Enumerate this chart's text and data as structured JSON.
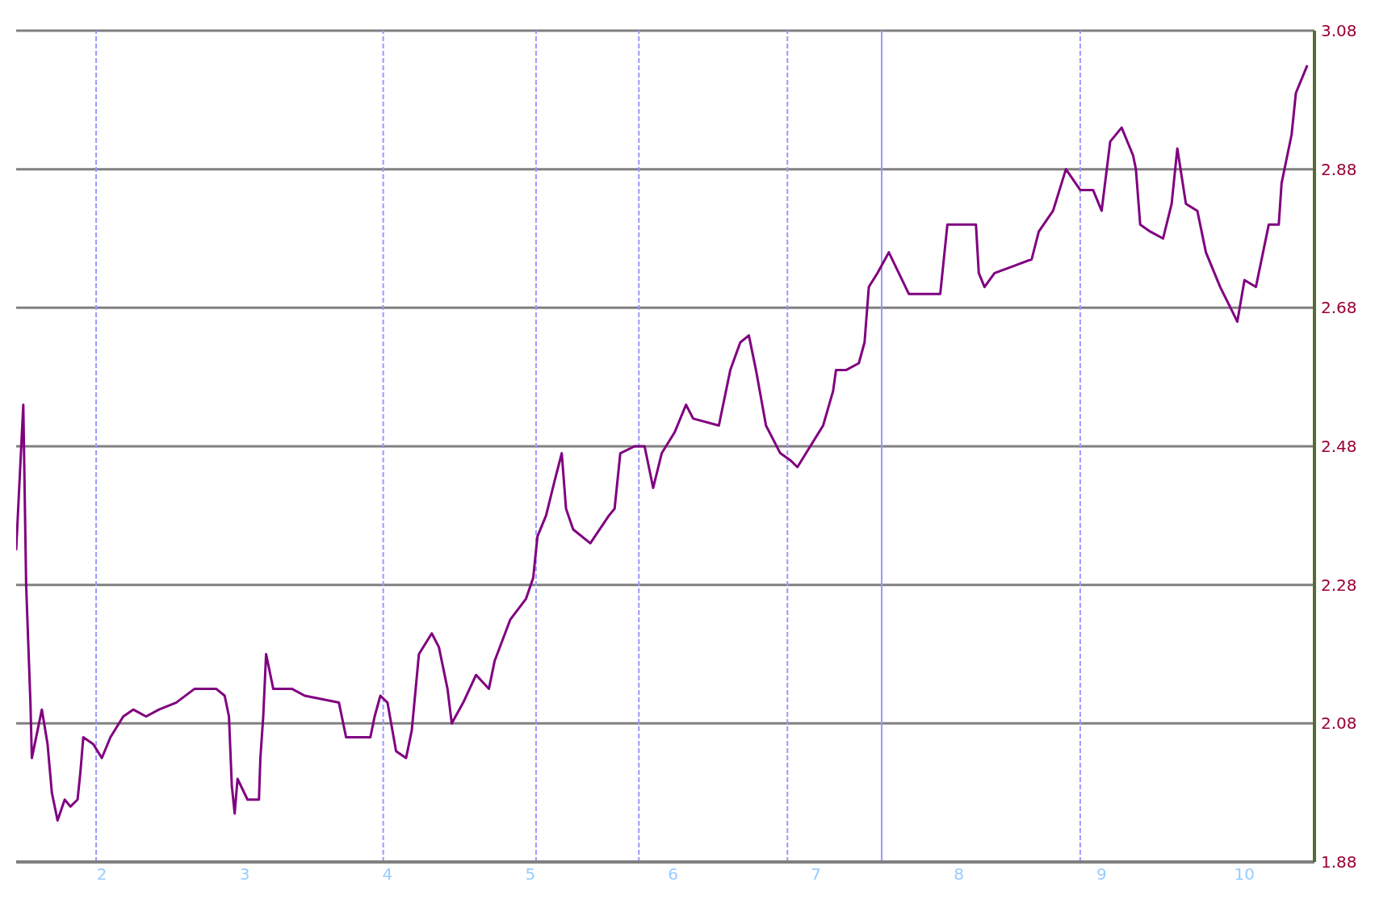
{
  "chart_data": {
    "type": "line",
    "x": [
      1.4,
      1.45,
      1.47,
      1.5,
      1.51,
      1.55,
      1.58,
      1.62,
      1.65,
      1.69,
      1.74,
      1.78,
      1.83,
      1.85,
      1.87,
      1.94,
      2.0,
      2.06,
      2.15,
      2.22,
      2.31,
      2.4,
      2.52,
      2.65,
      2.8,
      2.86,
      2.89,
      2.91,
      2.93,
      2.95,
      3.02,
      3.1,
      3.11,
      3.13,
      3.15,
      3.2,
      3.33,
      3.42,
      3.66,
      3.71,
      3.75,
      3.82,
      3.88,
      3.91,
      3.95,
      4.0,
      4.06,
      4.13,
      4.17,
      4.22,
      4.31,
      4.36,
      4.42,
      4.45,
      4.53,
      4.62,
      4.71,
      4.75,
      4.86,
      4.97,
      5.02,
      5.05,
      5.11,
      5.17,
      5.22,
      5.25,
      5.3,
      5.42,
      5.55,
      5.59,
      5.63,
      5.73,
      5.8,
      5.86,
      5.92,
      6.01,
      6.09,
      6.14,
      6.32,
      6.4,
      6.47,
      6.53,
      6.58,
      6.65,
      6.75,
      6.82,
      6.87,
      6.96,
      7.05,
      7.12,
      7.14,
      7.21,
      7.3,
      7.34,
      7.37,
      7.43,
      7.51,
      7.58,
      7.65,
      7.87,
      7.92,
      7.98,
      8.12,
      8.14,
      8.18,
      8.25,
      8.38,
      8.51,
      8.56,
      8.66,
      8.75,
      8.85,
      8.94,
      9.0,
      9.06,
      9.14,
      9.22,
      9.24,
      9.27,
      9.34,
      9.43,
      9.49,
      9.53,
      9.59,
      9.67,
      9.73,
      9.83,
      9.95,
      10.0,
      10.08,
      10.17,
      10.24,
      10.26,
      10.33,
      10.36,
      10.44
    ],
    "series": [
      {
        "color": "#800080",
        "values": [
          2.33,
          2.54,
          2.28,
          2.11,
          2.03,
          2.07,
          2.1,
          2.05,
          1.98,
          1.94,
          1.97,
          1.96,
          1.97,
          2.01,
          2.06,
          2.05,
          2.03,
          2.06,
          2.09,
          2.1,
          2.09,
          2.1,
          2.11,
          2.13,
          2.13,
          2.12,
          2.09,
          1.99,
          1.95,
          2.0,
          1.97,
          1.97,
          2.03,
          2.09,
          2.18,
          2.13,
          2.13,
          2.12,
          2.11,
          2.06,
          2.06,
          2.06,
          2.06,
          2.09,
          2.12,
          2.11,
          2.04,
          2.03,
          2.07,
          2.18,
          2.21,
          2.19,
          2.13,
          2.08,
          2.11,
          2.15,
          2.13,
          2.17,
          2.23,
          2.26,
          2.29,
          2.35,
          2.38,
          2.43,
          2.47,
          2.39,
          2.36,
          2.34,
          2.38,
          2.39,
          2.47,
          2.48,
          2.48,
          2.42,
          2.47,
          2.5,
          2.54,
          2.52,
          2.51,
          2.59,
          2.63,
          2.64,
          2.59,
          2.51,
          2.47,
          2.46,
          2.45,
          2.48,
          2.51,
          2.56,
          2.59,
          2.59,
          2.6,
          2.63,
          2.71,
          2.73,
          2.76,
          2.73,
          2.7,
          2.7,
          2.8,
          2.8,
          2.8,
          2.73,
          2.71,
          2.73,
          2.74,
          2.75,
          2.79,
          2.82,
          2.88,
          2.85,
          2.85,
          2.82,
          2.92,
          2.94,
          2.9,
          2.88,
          2.8,
          2.79,
          2.78,
          2.83,
          2.91,
          2.83,
          2.82,
          2.76,
          2.71,
          2.66,
          2.72,
          2.71,
          2.8,
          2.8,
          2.86,
          2.93,
          2.99,
          3.03
        ]
      }
    ],
    "xlim": [
      1.4,
      10.49
    ],
    "xticks": [
      2,
      3,
      4,
      5,
      6,
      7,
      8,
      9,
      10
    ],
    "ylim": [
      1.88,
      3.08
    ],
    "yticks": [
      1.88,
      2.08,
      2.28,
      2.48,
      2.68,
      2.88,
      3.08
    ],
    "ref_lines": [
      {
        "axis": "x",
        "value": 1.96,
        "color": "#9999ff",
        "line_style": "dashed"
      },
      {
        "axis": "x",
        "value": 3.97,
        "color": "#9999ff",
        "line_style": "dashed"
      },
      {
        "axis": "x",
        "value": 5.04,
        "color": "#9999ff",
        "line_style": "dashed"
      },
      {
        "axis": "x",
        "value": 5.76,
        "color": "#9999ff",
        "line_style": "dashed"
      },
      {
        "axis": "x",
        "value": 6.8,
        "color": "#9999ff",
        "line_style": "dashed"
      },
      {
        "axis": "x",
        "value": 7.46,
        "color": "#9999ff",
        "line_style": "solid"
      },
      {
        "axis": "x",
        "value": 8.85,
        "color": "#9999ff",
        "line_style": "dashed"
      }
    ],
    "grid": "y",
    "legend": false,
    "marker": "none",
    "line_style": "solid"
  }
}
